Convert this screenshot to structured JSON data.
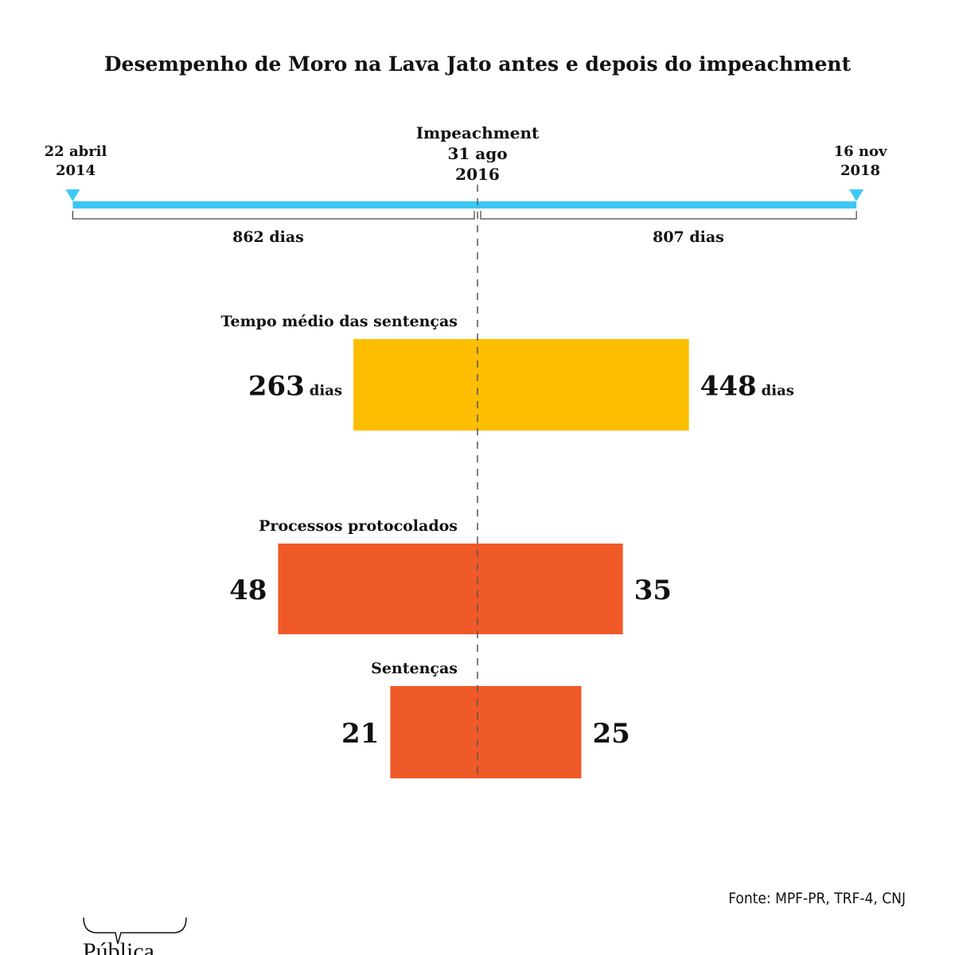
{
  "chart_data": {
    "type": "bar",
    "title": "Desempenho de Moro na Lava Jato antes e depois do impeachment",
    "timeline": {
      "start": {
        "line1": "22 abril",
        "line2": "2014"
      },
      "middle": {
        "line0": "Impeachment",
        "line1": "31 ago",
        "line2": "2016"
      },
      "end": {
        "line1": "16 nov",
        "line2": "2018"
      },
      "before_days": 862,
      "after_days": 807,
      "before_label": "862 dias",
      "after_label": "807 dias",
      "color": "#3cc8f5"
    },
    "groups": [
      {
        "label": "Tempo médio das sentenças",
        "before": 263,
        "after": 448,
        "before_label": "263",
        "after_label": "448",
        "unit": "dias",
        "color": "#fdbe00"
      },
      {
        "label": "Processos protocolados",
        "before": 48,
        "after": 35,
        "before_label": "48",
        "after_label": "35",
        "unit": "",
        "color": "#f05a28"
      },
      {
        "label": "Sentenças",
        "before": 21,
        "after": 25,
        "before_label": "21",
        "after_label": "25",
        "unit": "",
        "color": "#f05a28"
      }
    ]
  },
  "source": "Fonte: MPF-PR, TRF-4, CNJ",
  "logo": "Pública"
}
